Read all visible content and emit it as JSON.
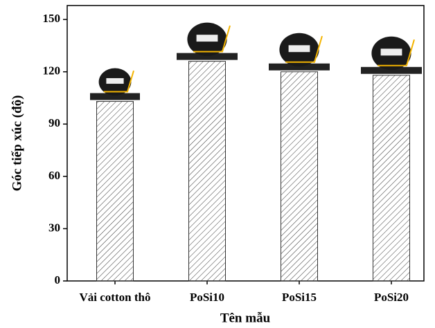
{
  "chart_data": {
    "type": "bar",
    "categories": [
      "Vải cotton thô",
      "PoSi10",
      "PoSi15",
      "PoSi20"
    ],
    "values": [
      103,
      126,
      120,
      118
    ],
    "color": "#333333",
    "x_label": "Tên mẫu",
    "y_label": "Góc tiếp xúc (độ)",
    "ylim": [
      0,
      158
    ],
    "yticks": [
      0,
      30,
      60,
      90,
      120,
      150
    ],
    "grid": false
  }
}
